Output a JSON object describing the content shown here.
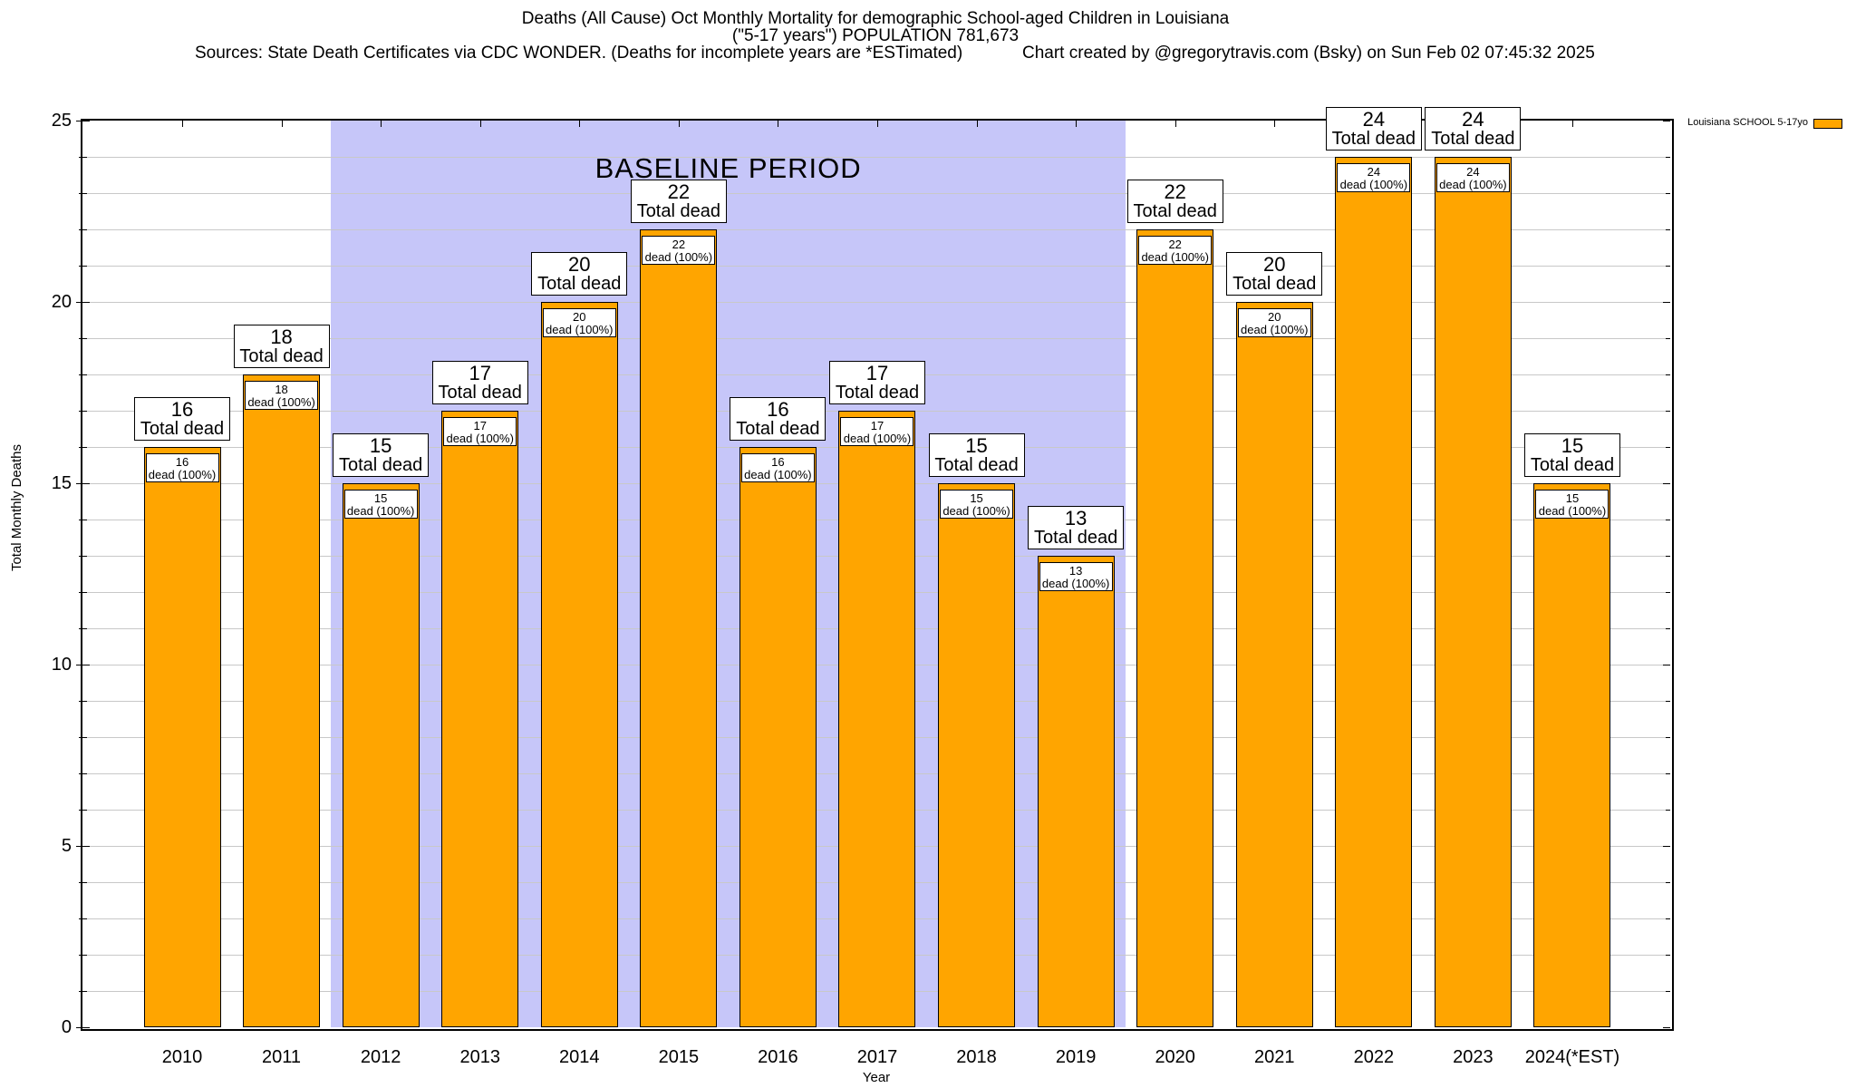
{
  "header": {
    "title_line1": "Deaths (All Cause) Oct Monthly Mortality for demographic School-aged Children in Louisiana",
    "title_line2": "(\"5-17 years\") POPULATION 781,673",
    "sources": "Sources: State Death Certificates via CDC WONDER. (Deaths for incomplete years are *ESTimated)",
    "credit": "Chart created by @gregorytravis.com (Bsky) on Sun Feb 02 07:45:32 2025"
  },
  "chart_data": {
    "type": "bar",
    "title": "Deaths (All Cause) Oct Monthly Mortality for demographic School-aged Children in Louisiana (\"5-17 years\") POPULATION 781,673",
    "categories": [
      "2010",
      "2011",
      "2012",
      "2013",
      "2014",
      "2015",
      "2016",
      "2017",
      "2018",
      "2019",
      "2020",
      "2021",
      "2022",
      "2023",
      "2024(*EST)"
    ],
    "values": [
      16,
      18,
      15,
      17,
      20,
      22,
      16,
      17,
      15,
      13,
      22,
      20,
      24,
      24,
      15
    ],
    "xlabel": "Year",
    "ylabel": "Total Monthly Deaths",
    "ylim": [
      0,
      25
    ],
    "y_major_ticks": [
      0,
      5,
      10,
      15,
      20,
      25
    ],
    "y_minor_step": 1,
    "grid": "on",
    "bar_color": "#ffa500",
    "bar_border_color": "#000000",
    "outer_label_suffix": "Total dead",
    "inner_label_suffix": "dead (100%)",
    "baseline": {
      "label": "BASELINE PERIOD",
      "from_category": "2012",
      "to_category": "2019",
      "from_index": 2,
      "to_index": 9,
      "color": "#c6c6f9"
    },
    "legend": {
      "label": "Louisiana SCHOOL 5-17yo",
      "swatch_color": "#ffa500",
      "position": "top-right"
    }
  }
}
